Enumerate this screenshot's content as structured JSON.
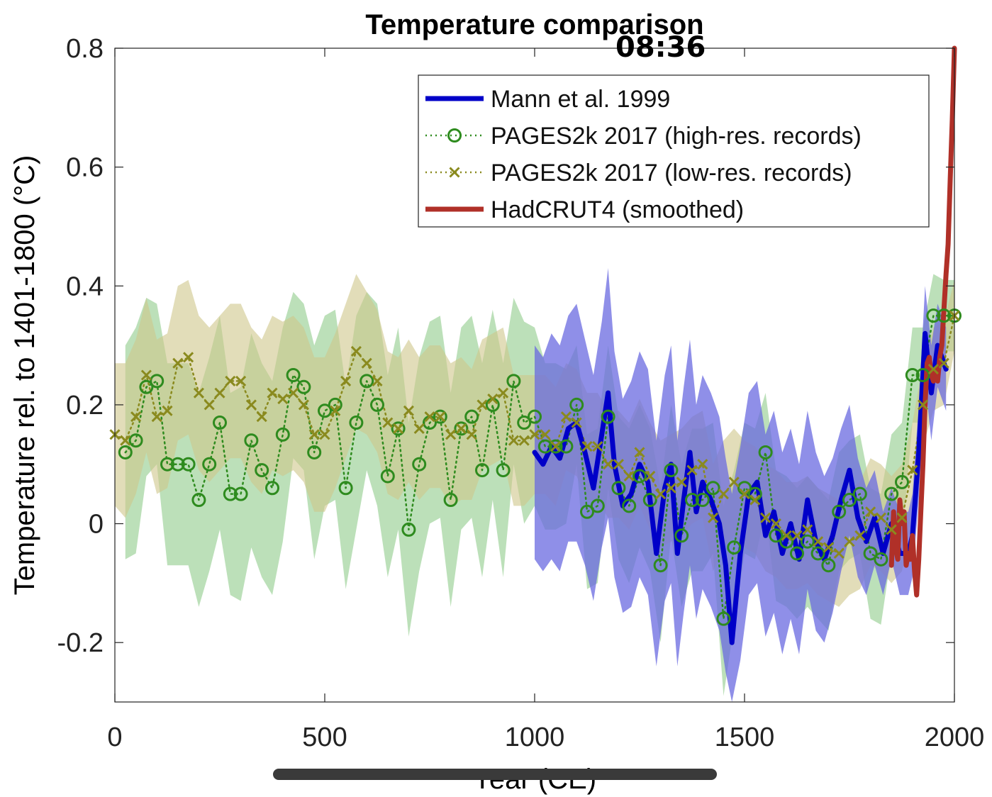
{
  "status_bar": {
    "time": "08:36"
  },
  "chart_data": {
    "type": "line",
    "title": "Temperature comparison",
    "xlabel": "Year (CE)",
    "ylabel": "Temperature rel. to 1401-1800 (°C)",
    "xlim": [
      0,
      2000
    ],
    "ylim": [
      -0.3,
      0.8
    ],
    "xticks": [
      0,
      500,
      1000,
      1500,
      2000
    ],
    "xtick_labels": [
      "0",
      "500",
      "1000",
      "1500",
      "2000"
    ],
    "yticks": [
      -0.2,
      0,
      0.2,
      0.4,
      0.6,
      0.8
    ],
    "ytick_labels": [
      "-0.2",
      "0",
      "0.2",
      "0.4",
      "0.6",
      "0.8"
    ],
    "grid": false,
    "legend_position": "top-right",
    "series": [
      {
        "name": "Mann et al. 1999",
        "style": "solid",
        "color": "#0000c8",
        "band_color": "#6a6ae0",
        "x": [
          1000,
          1020,
          1040,
          1060,
          1080,
          1100,
          1120,
          1140,
          1160,
          1175,
          1190,
          1210,
          1230,
          1250,
          1270,
          1290,
          1310,
          1325,
          1340,
          1355,
          1370,
          1385,
          1400,
          1420,
          1440,
          1455,
          1470,
          1490,
          1510,
          1530,
          1550,
          1570,
          1590,
          1610,
          1630,
          1650,
          1670,
          1690,
          1710,
          1730,
          1750,
          1770,
          1790,
          1810,
          1830,
          1850,
          1870,
          1890,
          1900,
          1915,
          1930,
          1945,
          1960,
          1980
        ],
        "y": [
          0.12,
          0.1,
          0.13,
          0.11,
          0.16,
          0.17,
          0.12,
          0.06,
          0.15,
          0.22,
          0.1,
          0.03,
          0.05,
          0.1,
          0.07,
          -0.05,
          0.06,
          0.1,
          -0.05,
          0.04,
          0.12,
          0.02,
          0.07,
          0.04,
          0.0,
          -0.07,
          -0.2,
          -0.05,
          0.05,
          0.07,
          -0.02,
          0.02,
          -0.05,
          0.0,
          -0.06,
          0.04,
          -0.03,
          -0.06,
          -0.02,
          0.04,
          0.09,
          0.01,
          -0.03,
          0.01,
          -0.05,
          0.0,
          -0.05,
          -0.05,
          -0.02,
          0.12,
          0.32,
          0.22,
          0.3,
          0.26
        ],
        "upper": [
          0.3,
          0.28,
          0.32,
          0.3,
          0.35,
          0.37,
          0.31,
          0.25,
          0.34,
          0.43,
          0.29,
          0.21,
          0.24,
          0.29,
          0.26,
          0.14,
          0.25,
          0.3,
          0.14,
          0.23,
          0.31,
          0.2,
          0.25,
          0.22,
          0.18,
          0.11,
          0.05,
          0.13,
          0.22,
          0.24,
          0.15,
          0.19,
          0.12,
          0.16,
          0.1,
          0.19,
          0.12,
          0.08,
          0.11,
          0.16,
          0.2,
          0.11,
          0.06,
          0.09,
          0.02,
          0.06,
          0.02,
          0.02,
          0.05,
          0.2,
          0.4,
          0.3,
          0.37,
          0.33
        ],
        "lower": [
          -0.06,
          -0.08,
          -0.06,
          -0.08,
          -0.03,
          -0.03,
          -0.07,
          -0.13,
          -0.04,
          0.01,
          -0.09,
          -0.15,
          -0.14,
          -0.09,
          -0.12,
          -0.24,
          -0.13,
          -0.1,
          -0.24,
          -0.15,
          -0.07,
          -0.16,
          -0.11,
          -0.14,
          -0.18,
          -0.25,
          -0.3,
          -0.23,
          -0.12,
          -0.1,
          -0.19,
          -0.15,
          -0.22,
          -0.16,
          -0.22,
          -0.11,
          -0.18,
          -0.2,
          -0.15,
          -0.08,
          -0.02,
          -0.09,
          -0.12,
          -0.07,
          -0.12,
          -0.06,
          -0.12,
          -0.12,
          -0.09,
          0.04,
          0.24,
          0.14,
          0.23,
          0.19
        ]
      },
      {
        "name": "PAGES2k 2017 (high-res. records)",
        "style": "dotted-circle",
        "color": "#2e8b1e",
        "band_color": "#8fcc8a",
        "x": [
          25,
          50,
          75,
          100,
          125,
          150,
          175,
          200,
          225,
          250,
          275,
          300,
          325,
          350,
          375,
          400,
          425,
          450,
          475,
          500,
          525,
          550,
          575,
          600,
          625,
          650,
          675,
          700,
          725,
          750,
          775,
          800,
          825,
          850,
          875,
          900,
          925,
          950,
          975,
          1000,
          1025,
          1050,
          1075,
          1100,
          1125,
          1150,
          1175,
          1200,
          1225,
          1250,
          1275,
          1300,
          1325,
          1350,
          1375,
          1400,
          1425,
          1450,
          1475,
          1500,
          1525,
          1550,
          1575,
          1600,
          1625,
          1650,
          1675,
          1700,
          1725,
          1750,
          1775,
          1800,
          1825,
          1850,
          1875,
          1900,
          1925,
          1950,
          1975,
          2000
        ],
        "y": [
          0.12,
          0.14,
          0.23,
          0.24,
          0.1,
          0.1,
          0.1,
          0.04,
          0.1,
          0.17,
          0.05,
          0.05,
          0.14,
          0.09,
          0.06,
          0.15,
          0.25,
          0.23,
          0.12,
          0.19,
          0.2,
          0.06,
          0.17,
          0.24,
          0.2,
          0.08,
          0.16,
          -0.01,
          0.1,
          0.17,
          0.18,
          0.04,
          0.16,
          0.18,
          0.09,
          0.2,
          0.09,
          0.24,
          0.17,
          0.18,
          0.13,
          0.13,
          0.13,
          0.2,
          0.02,
          0.03,
          0.18,
          0.06,
          0.03,
          0.08,
          0.04,
          -0.07,
          0.09,
          -0.02,
          0.04,
          0.04,
          0.06,
          -0.16,
          -0.04,
          0.06,
          0.05,
          0.12,
          -0.02,
          -0.03,
          -0.05,
          -0.03,
          -0.05,
          -0.07,
          0.02,
          0.04,
          0.05,
          -0.05,
          -0.06,
          0.05,
          0.07,
          0.25,
          0.25,
          0.35,
          0.35,
          0.35
        ],
        "upper": [
          0.3,
          0.33,
          0.38,
          0.37,
          0.27,
          0.27,
          0.27,
          0.22,
          0.28,
          0.35,
          0.22,
          0.23,
          0.32,
          0.27,
          0.24,
          0.33,
          0.39,
          0.37,
          0.3,
          0.35,
          0.36,
          0.23,
          0.35,
          0.39,
          0.37,
          0.25,
          0.33,
          0.17,
          0.28,
          0.34,
          0.35,
          0.22,
          0.33,
          0.35,
          0.27,
          0.36,
          0.27,
          0.38,
          0.34,
          0.33,
          0.27,
          0.27,
          0.26,
          0.3,
          0.15,
          0.16,
          0.3,
          0.18,
          0.16,
          0.2,
          0.16,
          0.06,
          0.2,
          0.1,
          0.16,
          0.16,
          0.17,
          0.03,
          0.09,
          0.17,
          0.16,
          0.22,
          0.09,
          0.08,
          0.06,
          0.08,
          0.06,
          0.04,
          0.12,
          0.14,
          0.15,
          0.06,
          0.05,
          0.15,
          0.17,
          0.33,
          0.33,
          0.42,
          0.41,
          0.41
        ],
        "lower": [
          -0.06,
          -0.05,
          0.08,
          0.1,
          -0.07,
          -0.07,
          -0.07,
          -0.14,
          -0.08,
          -0.01,
          -0.12,
          -0.13,
          -0.04,
          -0.09,
          -0.12,
          -0.03,
          0.11,
          0.09,
          -0.06,
          0.03,
          0.04,
          -0.11,
          -0.01,
          0.09,
          0.03,
          -0.09,
          -0.01,
          -0.19,
          -0.08,
          0.0,
          0.01,
          -0.14,
          -0.01,
          0.01,
          -0.09,
          0.04,
          -0.09,
          0.1,
          0.0,
          0.03,
          -0.01,
          -0.01,
          0.0,
          0.1,
          -0.11,
          -0.1,
          0.06,
          -0.06,
          -0.1,
          -0.04,
          -0.08,
          -0.2,
          -0.02,
          -0.14,
          -0.08,
          -0.08,
          -0.05,
          -0.29,
          -0.17,
          -0.05,
          -0.06,
          0.02,
          -0.13,
          -0.14,
          -0.16,
          -0.14,
          -0.16,
          -0.18,
          -0.08,
          -0.06,
          -0.05,
          -0.16,
          -0.17,
          -0.05,
          -0.03,
          0.17,
          0.17,
          0.28,
          0.29,
          0.29
        ]
      },
      {
        "name": "PAGES2k 2017 (low-res. records)",
        "style": "dotted-x",
        "color": "#8a8a1e",
        "band_color": "#cfc68a",
        "x": [
          0,
          25,
          50,
          75,
          100,
          125,
          150,
          175,
          200,
          225,
          250,
          275,
          300,
          325,
          350,
          375,
          400,
          425,
          450,
          475,
          500,
          525,
          550,
          575,
          600,
          625,
          650,
          675,
          700,
          725,
          750,
          775,
          800,
          825,
          850,
          875,
          900,
          925,
          950,
          975,
          1000,
          1025,
          1050,
          1075,
          1100,
          1125,
          1150,
          1175,
          1200,
          1225,
          1250,
          1275,
          1300,
          1325,
          1350,
          1375,
          1400,
          1425,
          1450,
          1475,
          1500,
          1525,
          1550,
          1575,
          1600,
          1625,
          1650,
          1675,
          1700,
          1725,
          1750,
          1775,
          1800,
          1825,
          1850,
          1875,
          1900,
          1925,
          1950,
          1975,
          2000
        ],
        "y": [
          0.15,
          0.14,
          0.18,
          0.25,
          0.18,
          0.19,
          0.27,
          0.28,
          0.22,
          0.2,
          0.22,
          0.24,
          0.24,
          0.2,
          0.18,
          0.22,
          0.21,
          0.22,
          0.2,
          0.15,
          0.15,
          0.19,
          0.24,
          0.29,
          0.27,
          0.24,
          0.17,
          0.16,
          0.19,
          0.16,
          0.18,
          0.18,
          0.15,
          0.16,
          0.15,
          0.2,
          0.21,
          0.22,
          0.14,
          0.14,
          0.15,
          0.15,
          0.13,
          0.18,
          0.17,
          0.13,
          0.13,
          0.1,
          0.1,
          0.08,
          0.12,
          0.08,
          0.05,
          0.06,
          0.07,
          0.09,
          0.1,
          0.01,
          0.05,
          0.07,
          0.05,
          0.04,
          0.01,
          0.0,
          -0.02,
          -0.02,
          -0.01,
          -0.03,
          -0.04,
          -0.05,
          -0.03,
          -0.02,
          0.02,
          0.01,
          -0.01,
          0.01,
          0.09,
          0.2,
          0.26,
          0.27,
          0.35
        ],
        "upper": [
          0.27,
          0.27,
          0.31,
          0.38,
          0.31,
          0.32,
          0.4,
          0.41,
          0.35,
          0.33,
          0.35,
          0.37,
          0.37,
          0.33,
          0.31,
          0.35,
          0.34,
          0.35,
          0.33,
          0.28,
          0.28,
          0.32,
          0.37,
          0.42,
          0.39,
          0.36,
          0.29,
          0.28,
          0.31,
          0.28,
          0.3,
          0.3,
          0.27,
          0.28,
          0.26,
          0.31,
          0.32,
          0.33,
          0.25,
          0.25,
          0.25,
          0.25,
          0.23,
          0.27,
          0.26,
          0.22,
          0.22,
          0.19,
          0.19,
          0.17,
          0.21,
          0.17,
          0.14,
          0.15,
          0.16,
          0.18,
          0.19,
          0.1,
          0.14,
          0.16,
          0.14,
          0.13,
          0.1,
          0.09,
          0.07,
          0.07,
          0.08,
          0.06,
          0.05,
          0.04,
          0.06,
          0.07,
          0.11,
          0.1,
          0.08,
          0.1,
          0.17,
          0.27,
          0.33,
          0.34,
          0.41
        ],
        "lower": [
          0.03,
          0.01,
          0.05,
          0.12,
          0.05,
          0.06,
          0.14,
          0.15,
          0.09,
          0.07,
          0.09,
          0.11,
          0.11,
          0.07,
          0.05,
          0.09,
          0.08,
          0.09,
          0.07,
          0.02,
          0.02,
          0.06,
          0.11,
          0.16,
          0.15,
          0.12,
          0.05,
          0.04,
          0.07,
          0.04,
          0.06,
          0.06,
          0.03,
          0.04,
          0.04,
          0.09,
          0.1,
          0.11,
          0.03,
          0.03,
          0.05,
          0.05,
          0.03,
          0.09,
          0.08,
          0.04,
          0.04,
          0.01,
          0.01,
          -0.01,
          0.03,
          -0.01,
          -0.04,
          -0.03,
          -0.02,
          0.0,
          0.01,
          -0.08,
          -0.04,
          -0.02,
          -0.04,
          -0.05,
          -0.08,
          -0.09,
          -0.11,
          -0.11,
          -0.1,
          -0.12,
          -0.13,
          -0.14,
          -0.12,
          -0.11,
          -0.07,
          -0.08,
          -0.1,
          -0.08,
          0.01,
          0.13,
          0.19,
          0.2,
          0.29
        ]
      },
      {
        "name": "HadCRUT4 (smoothed)",
        "style": "solid",
        "color": "#b03028",
        "x": [
          1850,
          1855,
          1860,
          1865,
          1870,
          1875,
          1880,
          1885,
          1890,
          1895,
          1900,
          1905,
          1910,
          1915,
          1920,
          1925,
          1930,
          1935,
          1940,
          1945,
          1950,
          1955,
          1960,
          1965,
          1970,
          1975,
          1980,
          1985,
          1990,
          1995,
          2000
        ],
        "y": [
          -0.07,
          0.02,
          -0.04,
          -0.06,
          0.04,
          0.0,
          0.02,
          -0.07,
          -0.05,
          -0.06,
          -0.02,
          -0.08,
          -0.12,
          -0.06,
          0.02,
          0.1,
          0.2,
          0.27,
          0.28,
          0.25,
          0.24,
          0.26,
          0.24,
          0.28,
          0.3,
          0.36,
          0.42,
          0.47,
          0.58,
          0.68,
          0.8
        ]
      }
    ]
  }
}
